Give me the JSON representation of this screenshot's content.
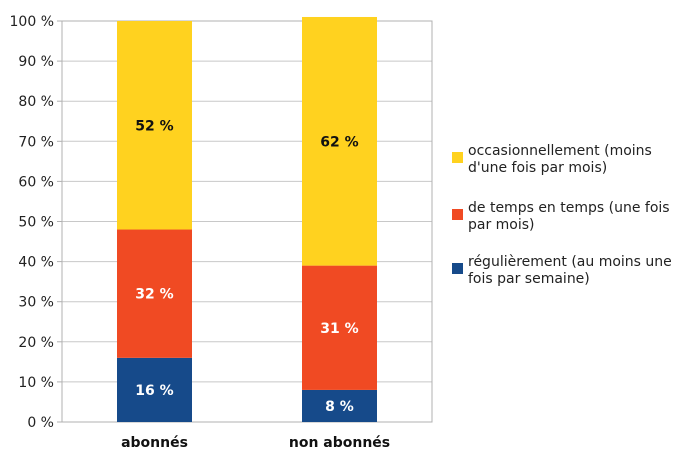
{
  "chart_data": {
    "type": "bar",
    "stacked": true,
    "categories": [
      "abonnés",
      "non abonnés"
    ],
    "series": [
      {
        "name": "régulièrement (au moins une fois par semaine)",
        "values": [
          16,
          8
        ],
        "labels": [
          "16 %",
          "8 %"
        ],
        "color": "#164A8A",
        "label_color": "#ffffff"
      },
      {
        "name": "de temps en temps (une fois par mois)",
        "values": [
          32,
          31
        ],
        "labels": [
          "32 %",
          "31 %"
        ],
        "color": "#F04A23",
        "label_color": "#ffffff"
      },
      {
        "name": "occasionnellement (moins d'une fois par mois)",
        "values": [
          52,
          62
        ],
        "labels": [
          "52 %",
          "62 %"
        ],
        "color": "#FFD21F",
        "label_color": "#111111"
      }
    ],
    "ylim": [
      0,
      100
    ],
    "yticks": [
      0,
      10,
      20,
      30,
      40,
      50,
      60,
      70,
      80,
      90,
      100
    ],
    "ytick_labels": [
      "0 %",
      "10 %",
      "20 %",
      "30 %",
      "40 %",
      "50 %",
      "60 %",
      "70 %",
      "80 %",
      "90 %",
      "100 %"
    ],
    "grid": true,
    "legend_position": "right",
    "legend_order": [
      2,
      1,
      0
    ],
    "legend_lines": [
      [
        "occasionnellement (moins",
        "d'une fois par mois)"
      ],
      [
        "de temps en temps (une fois",
        "par mois)"
      ],
      [
        "régulièrement (au moins une",
        "fois par semaine)"
      ]
    ],
    "title": "",
    "xlabel": "",
    "ylabel": ""
  }
}
